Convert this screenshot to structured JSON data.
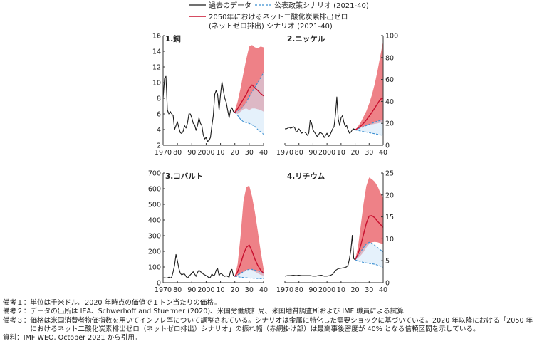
{
  "legend": {
    "historical": "過去のデータ",
    "steps": "公表政策シナリオ (2021-40)",
    "netzero_line1": "2050年におけるネット二酸化炭素排出ゼロ",
    "netzero_line2": "(ネットゼロ排出) シナリオ (2021-40)"
  },
  "colors": {
    "historical": "#1a1a1a",
    "steps": "#3a8fd1",
    "netzero": "#c8102e",
    "band": "#e8575f",
    "band_inner": "#cfe6f7",
    "axis": "#333333"
  },
  "chart_data": [
    {
      "type": "line",
      "title": "1.銅",
      "unit": "千米ドル",
      "x_ticks": [
        "1970",
        "80",
        "90",
        "2000",
        "10",
        "20",
        "30",
        "40"
      ],
      "xlim": [
        1970,
        2040
      ],
      "ylim": [
        2,
        16
      ],
      "y_ticks": [
        "2",
        "4",
        "6",
        "8",
        "10",
        "12",
        "14",
        "16"
      ],
      "y_axis_side": "left",
      "series": [
        {
          "name": "過去のデータ",
          "x": [
            1970,
            1971,
            1972,
            1973,
            1974,
            1975,
            1976,
            1977,
            1978,
            1979,
            1980,
            1981,
            1982,
            1983,
            1984,
            1985,
            1986,
            1987,
            1988,
            1989,
            1990,
            1991,
            1992,
            1993,
            1994,
            1995,
            1996,
            1997,
            1998,
            1999,
            2000,
            2001,
            2002,
            2003,
            2004,
            2005,
            2006,
            2007,
            2008,
            2009,
            2010,
            2011,
            2012,
            2013,
            2014,
            2015,
            2016,
            2017,
            2018,
            2019,
            2020
          ],
          "y": [
            8.0,
            10.5,
            10.8,
            6.5,
            6.0,
            6.3,
            6.0,
            5.8,
            4.0,
            4.5,
            5.0,
            4.2,
            3.6,
            3.5,
            3.8,
            4.5,
            4.2,
            4.8,
            6.0,
            6.0,
            5.5,
            4.8,
            4.6,
            3.9,
            4.5,
            5.5,
            4.8,
            4.5,
            3.3,
            2.8,
            3.0,
            2.5,
            2.6,
            3.0,
            4.5,
            5.8,
            8.5,
            9.0,
            8.5,
            6.5,
            8.5,
            10.1,
            9.0,
            8.0,
            7.5,
            6.5,
            5.5,
            6.5,
            6.8,
            6.3,
            6.2
          ]
        },
        {
          "name": "公表政策シナリオ",
          "x": [
            2020,
            2022,
            2024,
            2026,
            2028,
            2030,
            2032,
            2034,
            2036,
            2038,
            2040
          ],
          "y": [
            6.2,
            6.4,
            6.6,
            7.0,
            7.5,
            8.2,
            8.8,
            9.4,
            10.0,
            10.6,
            11.3
          ]
        },
        {
          "name": "公表政策シナリオ (下限)",
          "x": [
            2020,
            2022,
            2024,
            2026,
            2028,
            2030,
            2032,
            2034,
            2036,
            2038,
            2040
          ],
          "y": [
            6.2,
            5.8,
            5.3,
            5.0,
            4.9,
            4.8,
            4.6,
            4.4,
            4.0,
            3.7,
            3.4
          ]
        },
        {
          "name": "ネットゼロ排出シナリオ",
          "x": [
            2020,
            2022,
            2024,
            2026,
            2028,
            2030,
            2032,
            2034,
            2036,
            2038,
            2040
          ],
          "y": [
            6.2,
            6.7,
            7.3,
            7.9,
            8.5,
            9.3,
            9.7,
            9.3,
            9.0,
            8.6,
            8.3
          ]
        }
      ],
      "band": {
        "x": [
          2020,
          2022,
          2024,
          2026,
          2028,
          2030,
          2032,
          2034,
          2036,
          2038,
          2040
        ],
        "low": [
          6.2,
          6.0,
          6.3,
          6.6,
          6.7,
          6.5,
          6.7,
          6.7,
          6.6,
          6.5,
          6.3
        ],
        "high": [
          6.4,
          7.6,
          9.3,
          11.2,
          13.0,
          14.6,
          14.8,
          14.5,
          14.4,
          14.6,
          14.5
        ]
      }
    },
    {
      "type": "line",
      "title": "2.ニッケル",
      "unit": "千米ドル",
      "x_ticks": [
        "1970",
        "80",
        "90",
        "2000",
        "10",
        "20",
        "30",
        "40"
      ],
      "xlim": [
        1970,
        2040
      ],
      "ylim": [
        0,
        100
      ],
      "y_ticks": [
        "0",
        "20",
        "40",
        "60",
        "80",
        "100"
      ],
      "y_axis_side": "right",
      "series": [
        {
          "name": "過去のデータ",
          "x": [
            1970,
            1971,
            1972,
            1973,
            1974,
            1975,
            1976,
            1977,
            1978,
            1979,
            1980,
            1981,
            1982,
            1983,
            1984,
            1985,
            1986,
            1987,
            1988,
            1989,
            1990,
            1991,
            1992,
            1993,
            1994,
            1995,
            1996,
            1997,
            1998,
            1999,
            2000,
            2001,
            2002,
            2003,
            2004,
            2005,
            2006,
            2007,
            2008,
            2009,
            2010,
            2011,
            2012,
            2013,
            2014,
            2015,
            2016,
            2017,
            2018,
            2019,
            2020
          ],
          "y": [
            15.0,
            15.0,
            15.5,
            16.5,
            15.5,
            16.0,
            17.0,
            16.0,
            12.0,
            13.0,
            15.0,
            13.0,
            11.0,
            12.0,
            12.0,
            11.0,
            9.0,
            11.0,
            23.0,
            20.0,
            14.0,
            12.0,
            10.0,
            8.0,
            9.5,
            12.0,
            11.0,
            10.0,
            7.0,
            9.0,
            11.0,
            8.0,
            9.0,
            12.0,
            15.0,
            17.0,
            28.0,
            44.0,
            24.0,
            18.0,
            25.0,
            27.0,
            21.0,
            17.0,
            18.0,
            14.0,
            11.0,
            12.0,
            14.0,
            15.0,
            14.0
          ]
        },
        {
          "name": "公表政策シナリオ",
          "x": [
            2020,
            2022,
            2024,
            2026,
            2028,
            2030,
            2032,
            2034,
            2036,
            2038,
            2040
          ],
          "y": [
            14.0,
            15.0,
            16.0,
            17.0,
            18.0,
            19.0,
            20.0,
            21.0,
            22.0,
            22.5,
            23.0
          ]
        },
        {
          "name": "公表政策シナリオ (下限)",
          "x": [
            2020,
            2022,
            2024,
            2026,
            2028,
            2030,
            2032,
            2034,
            2036,
            2038,
            2040
          ],
          "y": [
            14.0,
            13.5,
            13.0,
            12.5,
            12.0,
            11.5,
            11.0,
            10.5,
            10.0,
            9.5,
            9.0
          ]
        },
        {
          "name": "ネットゼロ排出シナリオ",
          "x": [
            2020,
            2022,
            2024,
            2026,
            2028,
            2030,
            2032,
            2034,
            2036,
            2038,
            2040
          ],
          "y": [
            14.0,
            15.5,
            17.5,
            20.0,
            23.0,
            26.5,
            30.0,
            34.0,
            38.0,
            42.0,
            43.0
          ]
        }
      ],
      "band": {
        "x": [
          2020,
          2022,
          2024,
          2026,
          2028,
          2030,
          2032,
          2034,
          2036,
          2038,
          2040
        ],
        "low": [
          14.0,
          15.0,
          16.0,
          17.0,
          18.0,
          18.5,
          19.0,
          19.5,
          20.0,
          20.5,
          21.0
        ],
        "high": [
          14.0,
          17.0,
          21.0,
          26.0,
          31.0,
          38.0,
          46.0,
          56.0,
          68.0,
          82.0,
          95.0
        ]
      }
    },
    {
      "type": "line",
      "title": "3.コバルト",
      "unit": "千米ドル",
      "x_ticks": [
        "1970",
        "80",
        "90",
        "2000",
        "10",
        "20",
        "30",
        "40"
      ],
      "xlim": [
        1970,
        2040
      ],
      "ylim": [
        0,
        700
      ],
      "y_ticks": [
        "0",
        "100",
        "200",
        "300",
        "400",
        "500",
        "600",
        "700"
      ],
      "y_axis_side": "left",
      "series": [
        {
          "name": "過去のデータ",
          "x": [
            1970,
            1971,
            1972,
            1973,
            1974,
            1975,
            1976,
            1977,
            1978,
            1979,
            1980,
            1981,
            1982,
            1983,
            1984,
            1985,
            1986,
            1987,
            1988,
            1989,
            1990,
            1991,
            1992,
            1993,
            1994,
            1995,
            1996,
            1997,
            1998,
            1999,
            2000,
            2001,
            2002,
            2003,
            2004,
            2005,
            2006,
            2007,
            2008,
            2009,
            2010,
            2011,
            2012,
            2013,
            2014,
            2015,
            2016,
            2017,
            2018,
            2019,
            2020
          ],
          "y": [
            30.0,
            32.0,
            30.0,
            30.0,
            35.0,
            30.0,
            35.0,
            70.0,
            110.0,
            180.0,
            140.0,
            90.0,
            60.0,
            50.0,
            55.0,
            55.0,
            40.0,
            30.0,
            40.0,
            50.0,
            60.0,
            70.0,
            55.0,
            40.0,
            65.0,
            80.0,
            70.0,
            65.0,
            55.0,
            50.0,
            45.0,
            40.0,
            30.0,
            35.0,
            55.0,
            45.0,
            50.0,
            80.0,
            90.0,
            45.0,
            60.0,
            55.0,
            45.0,
            40.0,
            45.0,
            40.0,
            35.0,
            75.0,
            85.0,
            45.0,
            40.0
          ]
        },
        {
          "name": "公表政策シナリオ",
          "x": [
            2020,
            2022,
            2024,
            2026,
            2028,
            2030,
            2032,
            2034,
            2036,
            2038,
            2040
          ],
          "y": [
            40.0,
            50.0,
            60.0,
            70.0,
            80.0,
            85.0,
            85.0,
            80.0,
            75.0,
            70.0,
            65.0
          ]
        },
        {
          "name": "公表政策シナリオ (下限)",
          "x": [
            2020,
            2022,
            2024,
            2026,
            2028,
            2030,
            2032,
            2034,
            2036,
            2038,
            2040
          ],
          "y": [
            40.0,
            38.0,
            35.0,
            33.0,
            32.0,
            30.0,
            29.0,
            28.0,
            27.0,
            26.0,
            25.0
          ]
        },
        {
          "name": "ネットゼロ排出シナリオ",
          "x": [
            2020,
            2022,
            2024,
            2026,
            2028,
            2030,
            2032,
            2034,
            2036,
            2038,
            2040
          ],
          "y": [
            40.0,
            70.0,
            120.0,
            180.0,
            225.0,
            240.0,
            200.0,
            150.0,
            110.0,
            80.0,
            60.0
          ]
        }
      ],
      "band": {
        "x": [
          2020,
          2022,
          2024,
          2026,
          2028,
          2030,
          2032,
          2034,
          2036,
          2038,
          2040
        ],
        "low": [
          40.0,
          45.0,
          55.0,
          70.0,
          80.0,
          85.0,
          80.0,
          70.0,
          60.0,
          50.0,
          45.0
        ],
        "high": [
          40.0,
          120.0,
          300.0,
          520.0,
          610.0,
          620.0,
          550.0,
          450.0,
          330.0,
          200.0,
          90.0
        ]
      }
    },
    {
      "type": "line",
      "title": "4.リチウム",
      "unit": "千米ドル",
      "x_ticks": [
        "1970",
        "80",
        "90",
        "2000",
        "10",
        "20",
        "30",
        "40"
      ],
      "xlim": [
        1970,
        2040
      ],
      "ylim": [
        0,
        25
      ],
      "y_ticks": [
        "0",
        "5",
        "10",
        "15",
        "20",
        "25"
      ],
      "y_axis_side": "right",
      "series": [
        {
          "name": "過去のデータ",
          "x": [
            1970,
            1972,
            1974,
            1976,
            1978,
            1980,
            1982,
            1984,
            1986,
            1988,
            1990,
            1992,
            1994,
            1996,
            1998,
            2000,
            2002,
            2004,
            2006,
            2008,
            2010,
            2012,
            2014,
            2015,
            2016,
            2017,
            2018,
            2019,
            2020
          ],
          "y": [
            1.5,
            1.6,
            1.6,
            1.7,
            1.6,
            1.7,
            1.6,
            1.6,
            1.6,
            1.6,
            1.5,
            1.5,
            1.6,
            1.7,
            1.5,
            1.5,
            1.6,
            1.9,
            2.8,
            3.2,
            3.3,
            3.4,
            3.6,
            4.0,
            5.5,
            7.5,
            10.8,
            5.5,
            5.2
          ]
        },
        {
          "name": "公表政策シナリオ",
          "x": [
            2020,
            2022,
            2024,
            2026,
            2028,
            2030,
            2032,
            2034,
            2036,
            2038,
            2040
          ],
          "y": [
            5.2,
            6.0,
            7.0,
            8.0,
            8.8,
            9.2,
            9.0,
            8.5,
            8.0,
            7.5,
            7.0
          ]
        },
        {
          "name": "公表政策シナリオ (下限)",
          "x": [
            2020,
            2022,
            2024,
            2026,
            2028,
            2030,
            2032,
            2034,
            2036,
            2038,
            2040
          ],
          "y": [
            5.2,
            5.0,
            4.8,
            4.6,
            4.5,
            4.4,
            4.3,
            4.2,
            4.0,
            3.8,
            3.5
          ]
        },
        {
          "name": "ネットゼロ排出シナリオ",
          "x": [
            2020,
            2022,
            2024,
            2026,
            2028,
            2030,
            2032,
            2034,
            2036,
            2038,
            2040
          ],
          "y": [
            5.2,
            6.5,
            8.5,
            11.0,
            13.5,
            15.2,
            15.3,
            14.8,
            14.0,
            13.3,
            12.6
          ]
        }
      ],
      "band": {
        "x": [
          2020,
          2022,
          2024,
          2026,
          2028,
          2030,
          2032,
          2034,
          2036,
          2038,
          2040
        ],
        "low": [
          5.2,
          5.6,
          6.2,
          7.0,
          8.0,
          8.8,
          9.2,
          9.3,
          9.2,
          9.0,
          8.8
        ],
        "high": [
          5.2,
          8.0,
          13.0,
          18.0,
          22.0,
          24.0,
          23.6,
          23.0,
          22.0,
          20.5,
          19.5
        ]
      }
    }
  ],
  "notes": [
    {
      "label": "備考１：",
      "text": "単位は千米ドル。2020 年時点の価値で１トン当たりの価格。"
    },
    {
      "label": "備考２：",
      "text": "データの出所は IEA、Schwerhoff and Stuermer (2020)、米国労働統計局、米国地質調査所および IMF 職員による試算"
    },
    {
      "label": "備考３：",
      "text": "価格は米国消費者物価指数を用いてインフレ率について調整されている。シナリオは金属に特化した需要ショックに基づいている。2020 年以降における「2050 年におけるネット二酸化炭素排出ゼロ（ネットゼロ排出）シナリオ」の振れ幅（赤網掛け部）は最高事後密度が 40% となる信頼区間を示している。"
    },
    {
      "label": "資料：",
      "text": "IMF WEO, October 2021 から引用。"
    }
  ]
}
